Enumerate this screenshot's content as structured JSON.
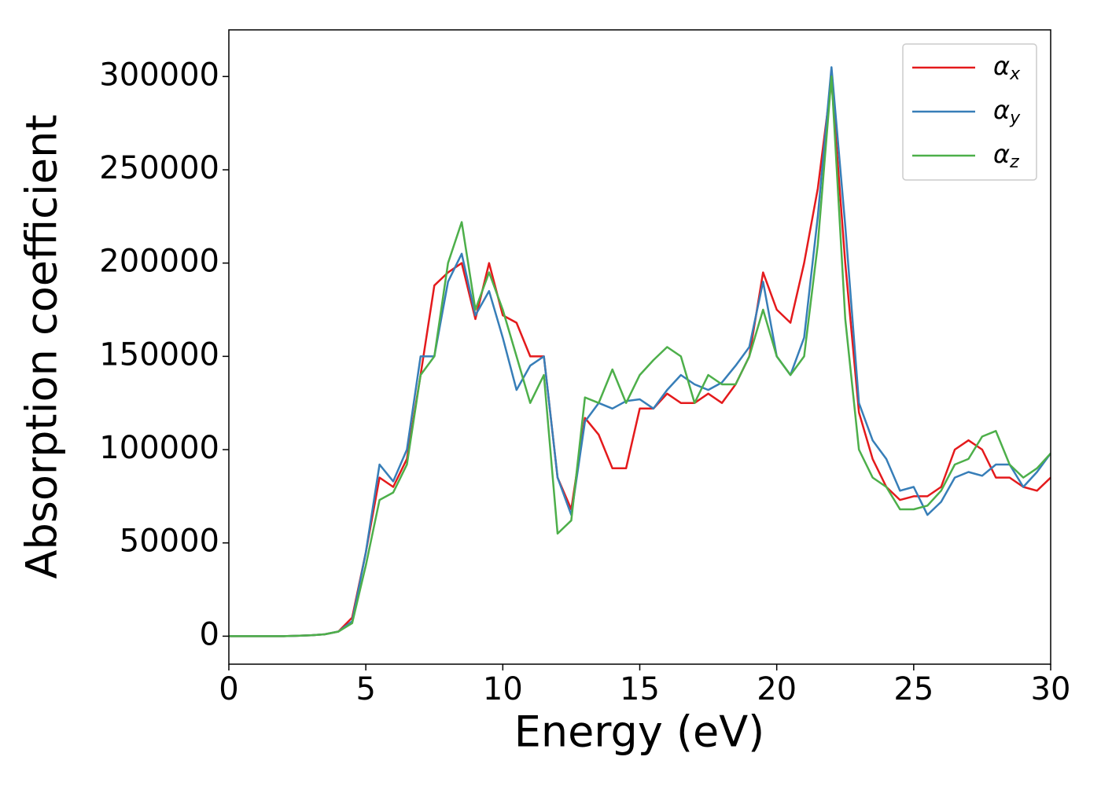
{
  "chart_data": {
    "type": "line",
    "xlabel": "Energy (eV)",
    "ylabel": "Absorption coefficient",
    "x": [
      0,
      0.5,
      1,
      1.5,
      2,
      2.5,
      3,
      3.5,
      4,
      4.5,
      5,
      5.5,
      6,
      6.5,
      7,
      7.5,
      8,
      8.5,
      9,
      9.5,
      10,
      10.5,
      11,
      11.5,
      12,
      12.5,
      13,
      13.5,
      14,
      14.5,
      15,
      15.5,
      16,
      16.5,
      17,
      17.5,
      18,
      18.5,
      19,
      19.5,
      20,
      20.5,
      21,
      21.5,
      22,
      22.5,
      23,
      23.5,
      24,
      24.5,
      25,
      25.5,
      26,
      26.5,
      27,
      27.5,
      28,
      28.5,
      29,
      29.5,
      30
    ],
    "series": [
      {
        "name": "αx",
        "color": "#e41a1c",
        "values": [
          0,
          0,
          0,
          0,
          0,
          200,
          500,
          1000,
          2500,
          10000,
          45000,
          85000,
          80000,
          95000,
          140000,
          188000,
          195000,
          200000,
          170000,
          200000,
          172000,
          168000,
          150000,
          150000,
          85000,
          68000,
          117000,
          108000,
          90000,
          90000,
          122000,
          122000,
          130000,
          125000,
          125000,
          130000,
          125000,
          135000,
          150000,
          195000,
          175000,
          168000,
          200000,
          240000,
          298000,
          200000,
          120000,
          95000,
          80000,
          73000,
          75000,
          75000,
          80000,
          100000,
          105000,
          100000,
          85000,
          85000,
          80000,
          78000,
          85000
        ]
      },
      {
        "name": "αy",
        "color": "#377eb8",
        "values": [
          0,
          0,
          0,
          0,
          0,
          200,
          500,
          1000,
          2500,
          8000,
          45000,
          92000,
          83000,
          100000,
          150000,
          150000,
          190000,
          205000,
          172000,
          185000,
          160000,
          132000,
          145000,
          150000,
          85000,
          65000,
          115000,
          125000,
          122000,
          126000,
          127000,
          122000,
          132000,
          140000,
          135000,
          132000,
          136000,
          145000,
          155000,
          190000,
          150000,
          140000,
          160000,
          225000,
          305000,
          220000,
          125000,
          105000,
          95000,
          78000,
          80000,
          65000,
          72000,
          85000,
          88000,
          86000,
          92000,
          92000,
          80000,
          88000,
          98000
        ]
      },
      {
        "name": "αz",
        "color": "#4daf4a",
        "values": [
          0,
          0,
          0,
          0,
          0,
          200,
          500,
          1000,
          2500,
          7000,
          38000,
          73000,
          77000,
          92000,
          140000,
          150000,
          200000,
          222000,
          175000,
          195000,
          175000,
          150000,
          125000,
          140000,
          55000,
          62000,
          128000,
          125000,
          143000,
          125000,
          140000,
          148000,
          155000,
          150000,
          125000,
          140000,
          135000,
          135000,
          150000,
          175000,
          150000,
          140000,
          150000,
          210000,
          300000,
          170000,
          100000,
          85000,
          80000,
          68000,
          68000,
          70000,
          78000,
          92000,
          95000,
          107000,
          110000,
          92000,
          85000,
          90000,
          98000
        ]
      }
    ],
    "xlim": [
      0,
      30
    ],
    "xticks": [
      0,
      5,
      10,
      15,
      20,
      25,
      30
    ],
    "ylim": [
      -15000,
      325000
    ],
    "yticks": [
      0,
      50000,
      100000,
      150000,
      200000,
      250000,
      300000
    ],
    "legend": "upper right"
  }
}
